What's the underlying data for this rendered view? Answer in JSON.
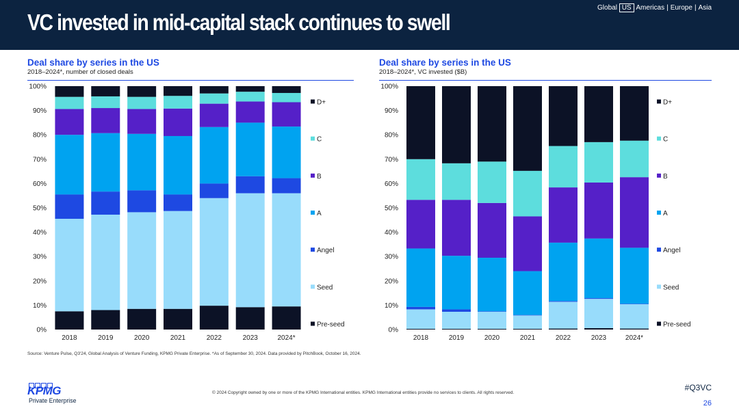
{
  "header": {
    "title": "VC invested in mid-capital stack continues to swell",
    "regions": [
      "Global",
      "US",
      "Americas",
      "Europe",
      "Asia"
    ],
    "active_region": "US"
  },
  "colors": {
    "Pre-seed": "#0c1226",
    "Seed": "#98dcfb",
    "Angel": "#1e49e2",
    "A": "#00a3f0",
    "B": "#5520c8",
    "C": "#5ddddd",
    "D+": "#0c1226"
  },
  "footer": {
    "source": "Source: Venture Pulse, Q3'24, Global Analysis of Venture Funding, KPMG Private Enterprise. *As of September 30, 2024. Data provided by PitchBook, October 16, 2024.",
    "copyright": "© 2024 Copyright owned by one or more of the KPMG International entities. KPMG International entities provide no services to clients. All rights reserved.",
    "hashtag": "#Q3VC",
    "page_number": "26",
    "logo_text": "KPMG",
    "logo_subtext": "Private Enterprise"
  },
  "chart_data": [
    {
      "type": "bar",
      "stacked": true,
      "title": "Deal share by series in the US",
      "subtitle": "2018–2024*, number of closed deals",
      "categories": [
        "2018",
        "2019",
        "2020",
        "2021",
        "2022",
        "2023",
        "2024*"
      ],
      "y_ticks": [
        "0%",
        "10%",
        "20%",
        "30%",
        "40%",
        "50%",
        "60%",
        "70%",
        "80%",
        "90%",
        "100%"
      ],
      "ylim": [
        0,
        100
      ],
      "legend": [
        "D+",
        "C",
        "B",
        "A",
        "Angel",
        "Seed",
        "Pre-seed"
      ],
      "series": [
        {
          "name": "Pre-seed",
          "values": [
            7.5,
            8,
            8.5,
            8.5,
            9.8,
            9.2,
            9.5
          ]
        },
        {
          "name": "Seed",
          "values": [
            38,
            39.2,
            39.7,
            40.2,
            44.2,
            46.8,
            46.5
          ]
        },
        {
          "name": "Angel",
          "values": [
            10,
            9.5,
            9,
            6.8,
            6,
            7,
            6.2
          ]
        },
        {
          "name": "A",
          "values": [
            24.5,
            24,
            23.2,
            24,
            23.2,
            22,
            21.2
          ]
        },
        {
          "name": "B",
          "values": [
            10.6,
            10.3,
            10.2,
            11.3,
            9.6,
            8.7,
            10
          ]
        },
        {
          "name": "C",
          "values": [
            5,
            4.8,
            5,
            5.2,
            4.2,
            4,
            3.8
          ]
        },
        {
          "name": "D+",
          "values": [
            4.4,
            4.2,
            4.4,
            4,
            3,
            2.3,
            2.8
          ]
        }
      ]
    },
    {
      "type": "bar",
      "stacked": true,
      "title": "Deal share by series in the US",
      "subtitle": "2018–2024*, VC invested ($B)",
      "categories": [
        "2018",
        "2019",
        "2020",
        "2021",
        "2022",
        "2023",
        "2024*"
      ],
      "y_ticks": [
        "0%",
        "10%",
        "20%",
        "30%",
        "40%",
        "50%",
        "60%",
        "70%",
        "80%",
        "90%",
        "100%"
      ],
      "ylim": [
        0,
        100
      ],
      "legend": [
        "D+",
        "C",
        "B",
        "A",
        "Angel",
        "Seed",
        "Pre-seed"
      ],
      "series": [
        {
          "name": "Pre-seed",
          "values": [
            0.3,
            0.3,
            0.3,
            0.3,
            0.4,
            0.6,
            0.4
          ]
        },
        {
          "name": "Seed",
          "values": [
            8,
            7,
            7,
            5.5,
            11,
            12,
            10
          ]
        },
        {
          "name": "Angel",
          "values": [
            1,
            1,
            0.2,
            0.2,
            0.3,
            0.3,
            0.2
          ]
        },
        {
          "name": "A",
          "values": [
            24,
            22,
            22,
            18,
            24,
            24.5,
            23
          ]
        },
        {
          "name": "B",
          "values": [
            20,
            23,
            22.5,
            22.5,
            22.7,
            23,
            29
          ]
        },
        {
          "name": "C",
          "values": [
            16.7,
            15,
            17,
            18.7,
            17,
            16.6,
            15
          ]
        },
        {
          "name": "D+",
          "values": [
            30,
            31.7,
            31,
            34.8,
            24.6,
            23,
            22.4
          ]
        }
      ]
    }
  ]
}
